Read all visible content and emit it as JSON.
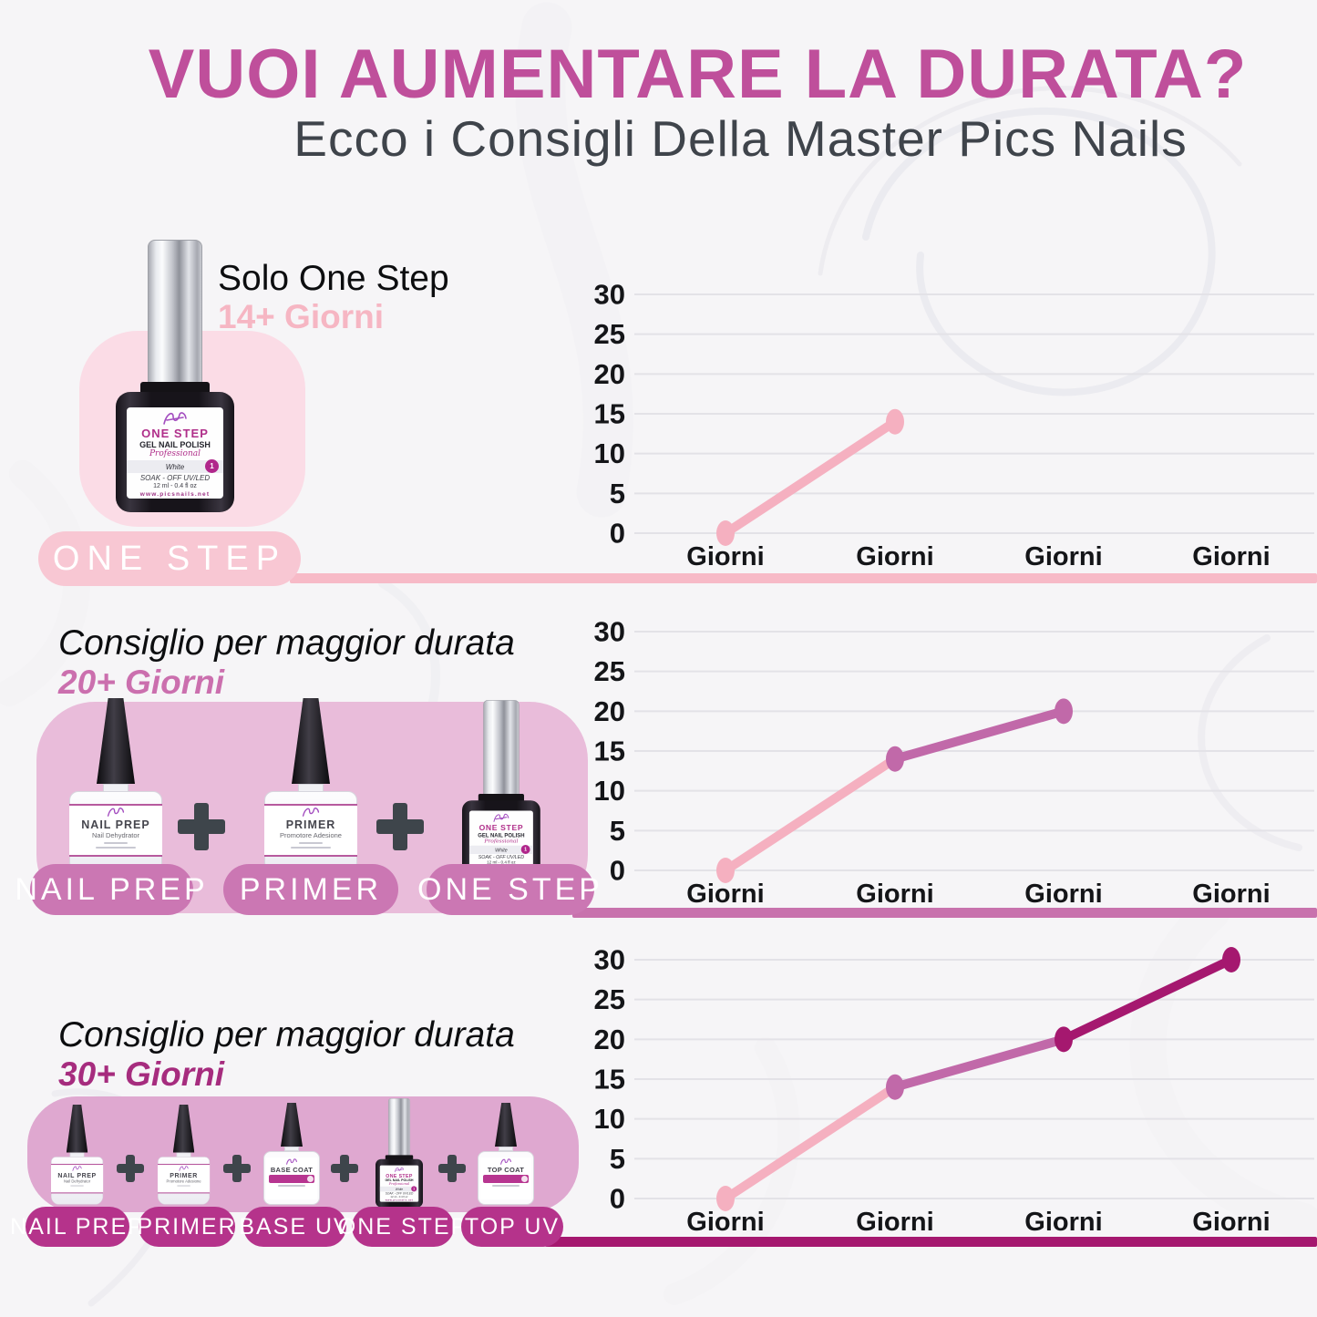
{
  "header": {
    "title": "VUOI AUMENTARE LA DURATA?",
    "subtitle": "Ecco i Consigli Della Master Pics Nails"
  },
  "sections": [
    {
      "heading": "Solo One Step",
      "duration": "14+ Giorni",
      "pills": [
        "ONE STEP"
      ]
    },
    {
      "heading": "Consiglio per maggior durata",
      "duration": "20+ Giorni",
      "pills": [
        "NAIL PREP",
        "PRIMER",
        "ONE STEP"
      ]
    },
    {
      "heading": "Consiglio per maggior durata",
      "duration": "30+ Giorni",
      "pills": [
        "NAIL PREP",
        "PRIMER",
        "BASE UV",
        "ONE STEP",
        "TOP UV"
      ]
    }
  ],
  "products": {
    "one_step": {
      "name": "ONE STEP",
      "subtitle": "GEL NAIL POLISH",
      "script": "Professional",
      "shade": "White",
      "shade_number": "1",
      "soak": "SOAK - OFF UV/LED",
      "size": "12 ml - 0.4 fl oz",
      "website": "www.picsnails.net"
    },
    "nail_prep": {
      "name": "NAIL PREP",
      "subtitle": "Nail Dehydrator"
    },
    "primer": {
      "name": "PRIMER",
      "subtitle": "Promotore Adesione"
    },
    "base_coat": {
      "name": "BASE COAT"
    },
    "top_coat": {
      "name": "TOP COAT"
    }
  },
  "colors": {
    "title_pink": "#bf4f9b",
    "subtitle_gray": "#3f444b",
    "light_pink_text": "#f6b6c3",
    "light_pink_bg": "#fbdce6",
    "light_pink_pill": "#f8c7d3",
    "medium_pink_text": "#cb6fae",
    "medium_pink_bg": "#e9bcda",
    "medium_pink_pill": "#cb77b3",
    "dark_magenta_text": "#a62c7e",
    "dark_magenta_bg": "#dfa8d0",
    "dark_magenta_pill": "#b5338b",
    "gridline": "#e3e2e7",
    "axis_text": "#141518",
    "plus_gray": "#3e454b"
  },
  "chart_data": [
    {
      "type": "line",
      "name": "Solo One Step",
      "duration_label": "14+ Giorni",
      "x_labels": [
        "Giorni",
        "Giorni",
        "Giorni",
        "Giorni"
      ],
      "values": [
        0,
        14
      ],
      "yticks": [
        0,
        5,
        10,
        15,
        20,
        25,
        30
      ],
      "ylim": [
        0,
        30
      ],
      "grid": true,
      "legend": "none",
      "segment_colors": [
        "#f5b0c0"
      ],
      "divider_color": "#f7bac7"
    },
    {
      "type": "line",
      "name": "Nail Prep + Primer + One Step",
      "duration_label": "20+ Giorni",
      "x_labels": [
        "Giorni",
        "Giorni",
        "Giorni",
        "Giorni"
      ],
      "values": [
        0,
        14,
        20
      ],
      "yticks": [
        0,
        5,
        10,
        15,
        20,
        25,
        30
      ],
      "ylim": [
        0,
        30
      ],
      "grid": true,
      "legend": "none",
      "segment_colors": [
        "#f5b0c0",
        "#c169a9"
      ],
      "divider_color": "#c872ad"
    },
    {
      "type": "line",
      "name": "Nail Prep + Primer + Base UV + One Step + Top UV",
      "duration_label": "30+ Giorni",
      "x_labels": [
        "Giorni",
        "Giorni",
        "Giorni",
        "Giorni"
      ],
      "values": [
        0,
        14,
        20,
        30
      ],
      "yticks": [
        0,
        5,
        10,
        15,
        20,
        25,
        30
      ],
      "ylim": [
        0,
        30
      ],
      "grid": true,
      "legend": "none",
      "segment_colors": [
        "#f5b0c0",
        "#c169a9",
        "#a5186f"
      ],
      "divider_color": "#a5186f"
    }
  ]
}
